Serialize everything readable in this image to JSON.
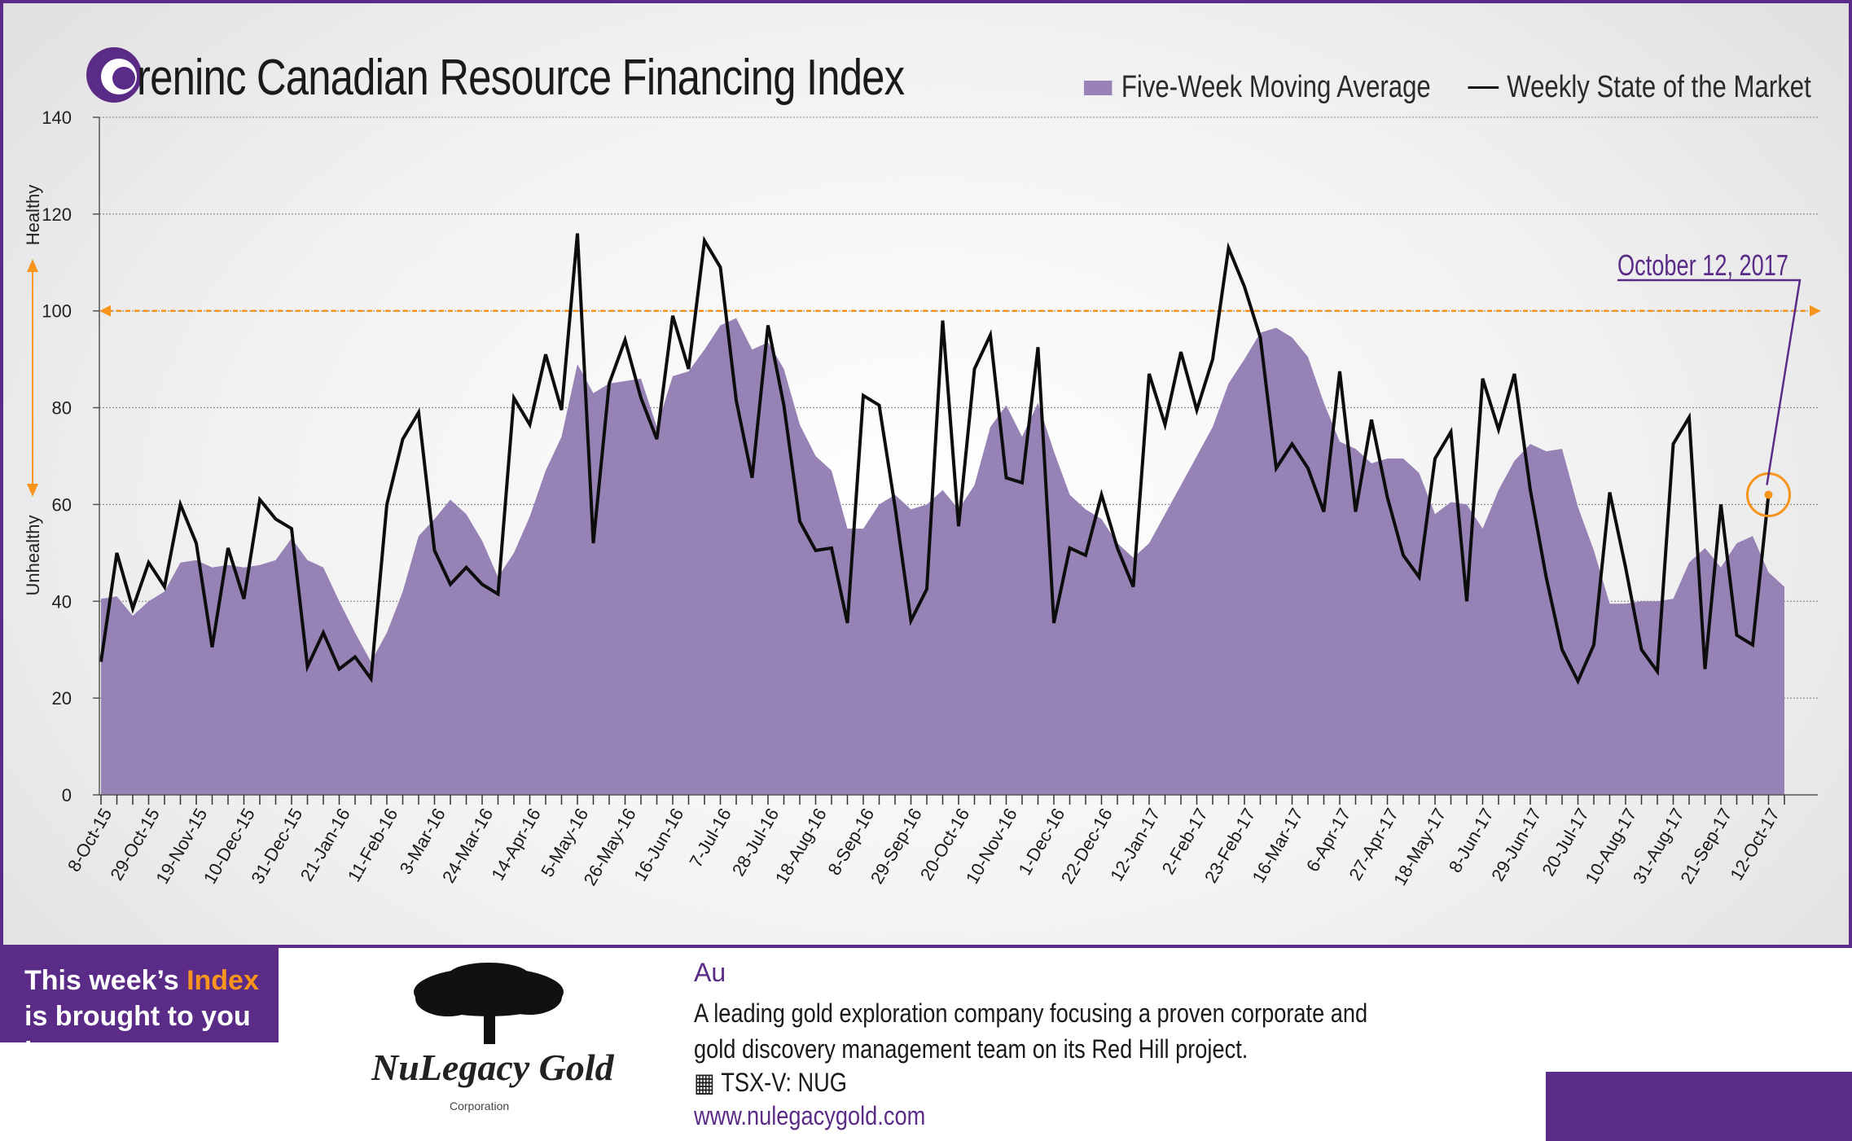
{
  "header": {
    "title": "Canadian Resource Financing Index",
    "brand": "reninc"
  },
  "chart_data": {
    "type": "area+line",
    "ylim": [
      0,
      140
    ],
    "yticks": [
      0,
      20,
      40,
      60,
      80,
      100,
      120,
      140
    ],
    "ylabel_top": "Healthy",
    "ylabel_bottom": "Unhealthy",
    "threshold": 100,
    "xticklabels": [
      "8-Oct-15",
      "29-Oct-15",
      "19-Nov-15",
      "10-Dec-15",
      "31-Dec-15",
      "21-Jan-16",
      "11-Feb-16",
      "3-Mar-16",
      "24-Mar-16",
      "14-Apr-16",
      "5-May-16",
      "26-May-16",
      "16-Jun-16",
      "7-Jul-16",
      "28-Jul-16",
      "18-Aug-16",
      "8-Sep-16",
      "29-Sep-16",
      "20-Oct-16",
      "10-Nov-16",
      "1-Dec-16",
      "22-Dec-16",
      "12-Jan-17",
      "2-Feb-17",
      "23-Feb-17",
      "16-Mar-17",
      "6-Apr-17",
      "27-Apr-17",
      "18-May-17",
      "8-Jun-17",
      "29-Jun-17",
      "20-Jul-17",
      "10-Aug-17",
      "31-Aug-17",
      "21-Sep-17",
      "12-Oct-17"
    ],
    "series": [
      {
        "name": "Five-Week Moving Average",
        "kind": "area",
        "color": "#9782b5",
        "values": [
          40.5,
          41,
          37,
          40,
          42,
          48,
          48.5,
          47,
          47.5,
          47,
          47.5,
          48.5,
          53,
          48.5,
          47,
          40,
          33.5,
          27.5,
          33.5,
          42,
          53.5,
          57,
          61,
          58,
          52.5,
          45,
          50,
          57.5,
          67,
          74,
          89,
          83,
          85,
          85.5,
          86,
          76,
          86.5,
          87.5,
          92,
          97,
          98.5,
          92,
          93.5,
          88,
          76.5,
          70,
          67,
          55,
          55,
          60,
          62,
          59,
          60,
          63,
          59,
          64,
          76,
          80.5,
          74,
          81,
          71,
          62,
          59,
          57,
          52,
          49,
          52,
          58,
          64,
          70,
          76,
          85,
          90,
          95.5,
          96.5,
          94.5,
          90.5,
          81,
          73,
          71.5,
          68.5,
          69.5,
          69.5,
          66.5,
          58,
          60.5,
          60,
          55,
          63,
          69,
          72.5,
          71,
          71.5,
          59.5,
          50.5,
          39.5,
          39.5,
          40,
          40,
          40.5,
          48,
          51,
          47,
          52,
          53.5,
          46,
          43
        ]
      },
      {
        "name": "Weekly State of the Market",
        "kind": "line",
        "color": "#0d0d0d",
        "values": [
          27.5,
          50,
          38.5,
          48,
          43,
          60,
          52,
          30.5,
          51,
          40.5,
          61,
          57,
          55,
          26.5,
          33.5,
          26,
          28.5,
          24,
          60,
          73.5,
          79,
          50.5,
          43.5,
          47,
          43.5,
          41.5,
          82,
          76.5,
          91,
          79.5,
          116,
          52,
          85,
          94,
          82,
          73.5,
          99,
          88,
          114.5,
          109,
          81.5,
          65.5,
          97,
          80.5,
          56.5,
          50.5,
          51,
          35.5,
          82.5,
          80.5,
          59.5,
          36,
          42.5,
          98,
          55.5,
          88,
          95,
          65.5,
          64.5,
          92.5,
          35.5,
          51,
          49.5,
          62,
          51,
          43,
          87,
          76.5,
          91.5,
          79.5,
          90,
          113,
          105,
          94.5,
          67.5,
          72.5,
          67.5,
          58.5,
          87.5,
          58.5,
          77.5,
          61.5,
          49.5,
          45,
          69.5,
          75,
          40,
          86,
          75.5,
          87,
          63,
          45,
          30,
          23.5,
          31,
          62.5,
          47,
          30,
          25.5,
          72.5,
          78,
          26,
          60,
          33,
          31,
          62
        ]
      }
    ],
    "annotation": {
      "label": "October 12, 2017",
      "value": 62
    }
  },
  "legend": {
    "area": "Five-Week Moving Average",
    "line": "Weekly State of the Market"
  },
  "footer": {
    "brought_prefix": "This week’s ",
    "brought_highlight": "Index",
    "brought_suffix": " is brought to you by:",
    "sponsor_name": "NuLegacy Gold",
    "sponsor_sub": "Corporation",
    "symbol": "Au",
    "description": "A leading gold exploration company focusing a proven corporate and gold discovery management team on its Red Hill project.",
    "ticker": "TSX-V:  NUG",
    "url": "www.nulegacygold.com"
  }
}
